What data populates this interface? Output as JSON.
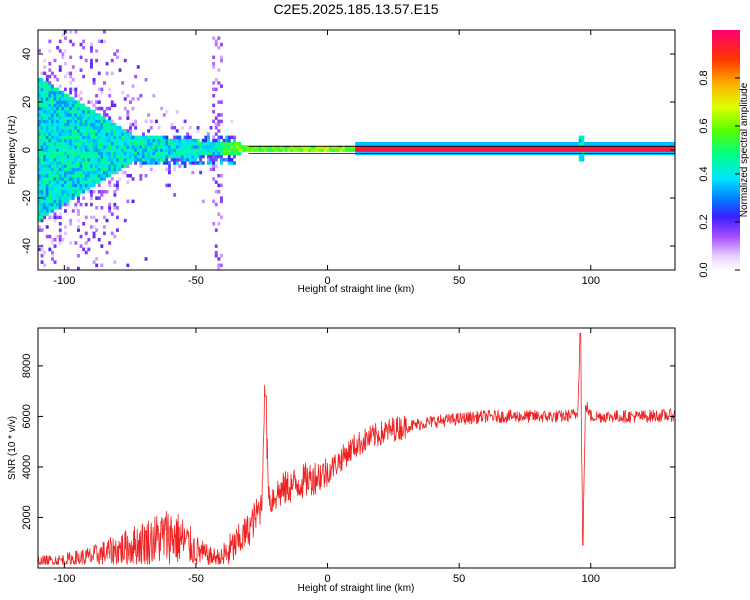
{
  "chart_data": [
    {
      "type": "heatmap",
      "title": "C2E5.2025.185.13.57.E15",
      "xlabel": "Height of straight line (km)",
      "ylabel": "Frequency (Hz)",
      "xlim": [
        -110,
        132
      ],
      "ylim": [
        -50,
        50
      ],
      "x_ticks": [
        "-100",
        "-50",
        "0",
        "50",
        "100"
      ],
      "y_ticks": [
        "-40",
        "-20",
        "0",
        "20",
        "40"
      ],
      "colorbar": {
        "label": "Normalized spectral amplitude",
        "range": [
          0,
          1
        ],
        "ticks": [
          "0.0",
          "0.2",
          "0.4",
          "0.6",
          "0.8"
        ],
        "colors": [
          "#ffffff",
          "#c9a3f0",
          "#8a2be2",
          "#2020ff",
          "#00bfff",
          "#00ffff",
          "#00ff66",
          "#66ff00",
          "#ffff00",
          "#ff9900",
          "#ff3300",
          "#ff0080"
        ]
      },
      "description_points": {
        "carrier_frequency_hz": 0,
        "carrier_line_start_km": 10,
        "carrier_line_end_km": 132,
        "noise_spread_hz": [
          [
            -110,
            50
          ],
          [
            -75,
            10
          ],
          [
            -40,
            4
          ],
          [
            -20,
            2
          ],
          [
            0,
            1
          ],
          [
            20,
            0.5
          ]
        ],
        "spike_km": 96
      }
    },
    {
      "type": "line",
      "title": "",
      "xlabel": "Height of straight line (km)",
      "ylabel": "SNR (10 * v/v)",
      "xlim": [
        -110,
        132
      ],
      "ylim": [
        0,
        9500
      ],
      "x_ticks": [
        "-100",
        "-50",
        "0",
        "50",
        "100"
      ],
      "y_ticks": [
        "2000",
        "4000",
        "6000",
        "8000"
      ],
      "color": "#ee2222",
      "series": [
        {
          "x": [
            -110,
            -100,
            -90,
            -80,
            -70,
            -60,
            -55,
            -50,
            -45,
            -40,
            -35,
            -30,
            -25,
            -24,
            -22,
            -20,
            -15,
            -10,
            -5,
            0,
            5,
            10,
            15,
            20,
            25,
            30,
            40,
            50,
            60,
            70,
            80,
            90,
            95,
            96,
            97,
            98,
            100,
            110,
            120,
            132
          ],
          "values": [
            250,
            300,
            450,
            700,
            1000,
            1300,
            1100,
            700,
            450,
            400,
            900,
            1500,
            2500,
            6800,
            2600,
            2900,
            3200,
            3400,
            3600,
            3800,
            4300,
            4800,
            5100,
            5300,
            5500,
            5600,
            5800,
            5900,
            6000,
            6000,
            6000,
            6000,
            6100,
            9300,
            900,
            6500,
            6000,
            6000,
            6000,
            6050
          ]
        }
      ]
    }
  ]
}
